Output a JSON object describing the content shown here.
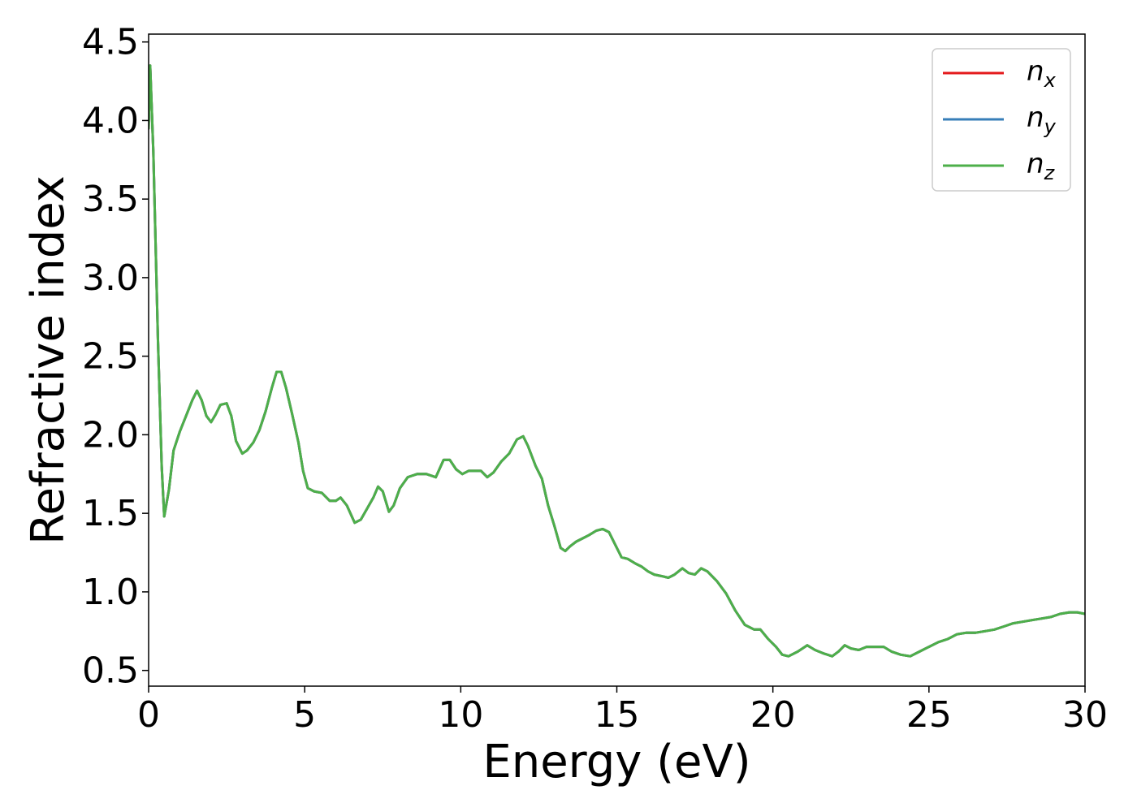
{
  "chart_data": {
    "type": "line",
    "title": "",
    "xlabel": "Energy (eV)",
    "ylabel": "Refractive index",
    "xlim": [
      0,
      30
    ],
    "ylim": [
      0.4,
      4.55
    ],
    "xticks": [
      0,
      5,
      10,
      15,
      20,
      25,
      30
    ],
    "xtick_labels": [
      "0",
      "5",
      "10",
      "15",
      "20",
      "25",
      "30"
    ],
    "yticks": [
      0.5,
      1.0,
      1.5,
      2.0,
      2.5,
      3.0,
      3.5,
      4.0,
      4.5
    ],
    "ytick_labels": [
      "0.5",
      "1.0",
      "1.5",
      "2.0",
      "2.5",
      "3.0",
      "3.5",
      "4.0",
      "4.5"
    ],
    "grid": false,
    "legend": {
      "position": "top-right",
      "entries": [
        {
          "base": "n",
          "sub": "x",
          "color": "#e41a1c"
        },
        {
          "base": "n",
          "sub": "y",
          "color": "#377eb8"
        },
        {
          "base": "n",
          "sub": "z",
          "color": "#4daf4a"
        }
      ]
    },
    "x": [
      0.0,
      0.05,
      0.15,
      0.3,
      0.42,
      0.5,
      0.65,
      0.8,
      1.0,
      1.2,
      1.4,
      1.55,
      1.7,
      1.85,
      2.0,
      2.15,
      2.3,
      2.5,
      2.65,
      2.8,
      3.0,
      3.15,
      3.35,
      3.55,
      3.75,
      3.95,
      4.1,
      4.25,
      4.4,
      4.6,
      4.8,
      4.95,
      5.1,
      5.3,
      5.55,
      5.8,
      6.0,
      6.15,
      6.35,
      6.6,
      6.8,
      7.0,
      7.2,
      7.35,
      7.5,
      7.7,
      7.85,
      8.05,
      8.3,
      8.6,
      8.9,
      9.2,
      9.45,
      9.65,
      9.85,
      10.05,
      10.25,
      10.45,
      10.65,
      10.85,
      11.05,
      11.3,
      11.55,
      11.8,
      12.0,
      12.15,
      12.4,
      12.6,
      12.8,
      13.0,
      13.2,
      13.35,
      13.5,
      13.7,
      13.9,
      14.1,
      14.35,
      14.55,
      14.75,
      14.95,
      15.15,
      15.35,
      15.6,
      15.8,
      16.0,
      16.2,
      16.45,
      16.65,
      16.85,
      17.1,
      17.3,
      17.5,
      17.7,
      17.9,
      18.2,
      18.5,
      18.8,
      19.1,
      19.4,
      19.6,
      19.85,
      20.1,
      20.3,
      20.5,
      20.8,
      21.1,
      21.35,
      21.6,
      21.9,
      22.1,
      22.3,
      22.5,
      22.75,
      23.0,
      23.3,
      23.55,
      23.8,
      24.1,
      24.4,
      24.7,
      25.0,
      25.3,
      25.6,
      25.9,
      26.2,
      26.5,
      26.8,
      27.1,
      27.4,
      27.7,
      28.0,
      28.3,
      28.6,
      28.9,
      29.2,
      29.5,
      29.75,
      30.0
    ],
    "series": [
      {
        "name": "n_x",
        "color": "#e41a1c",
        "y": [
          3.95,
          4.35,
          3.8,
          2.6,
          1.8,
          1.48,
          1.65,
          1.9,
          2.02,
          2.12,
          2.22,
          2.28,
          2.22,
          2.12,
          2.08,
          2.13,
          2.19,
          2.2,
          2.12,
          1.96,
          1.88,
          1.9,
          1.95,
          2.03,
          2.15,
          2.3,
          2.4,
          2.4,
          2.3,
          2.13,
          1.95,
          1.77,
          1.66,
          1.64,
          1.63,
          1.58,
          1.58,
          1.6,
          1.55,
          1.44,
          1.46,
          1.53,
          1.6,
          1.67,
          1.64,
          1.51,
          1.55,
          1.66,
          1.73,
          1.75,
          1.75,
          1.73,
          1.84,
          1.84,
          1.78,
          1.75,
          1.77,
          1.77,
          1.77,
          1.73,
          1.76,
          1.83,
          1.88,
          1.97,
          1.99,
          1.93,
          1.8,
          1.72,
          1.55,
          1.42,
          1.28,
          1.26,
          1.29,
          1.32,
          1.34,
          1.36,
          1.39,
          1.4,
          1.38,
          1.3,
          1.22,
          1.21,
          1.18,
          1.16,
          1.13,
          1.11,
          1.1,
          1.09,
          1.11,
          1.15,
          1.12,
          1.11,
          1.15,
          1.13,
          1.07,
          0.99,
          0.88,
          0.79,
          0.76,
          0.76,
          0.7,
          0.65,
          0.6,
          0.59,
          0.62,
          0.66,
          0.63,
          0.61,
          0.59,
          0.62,
          0.66,
          0.64,
          0.63,
          0.65,
          0.65,
          0.65,
          0.62,
          0.6,
          0.59,
          0.62,
          0.65,
          0.68,
          0.7,
          0.73,
          0.74,
          0.74,
          0.75,
          0.76,
          0.78,
          0.8,
          0.81,
          0.82,
          0.83,
          0.84,
          0.86,
          0.87,
          0.87,
          0.86
        ]
      },
      {
        "name": "n_y",
        "color": "#377eb8",
        "y": [
          3.95,
          4.35,
          3.8,
          2.6,
          1.8,
          1.48,
          1.65,
          1.9,
          2.02,
          2.12,
          2.22,
          2.28,
          2.22,
          2.12,
          2.08,
          2.13,
          2.19,
          2.2,
          2.12,
          1.96,
          1.88,
          1.9,
          1.95,
          2.03,
          2.15,
          2.3,
          2.4,
          2.4,
          2.3,
          2.13,
          1.95,
          1.77,
          1.66,
          1.64,
          1.63,
          1.58,
          1.58,
          1.6,
          1.55,
          1.44,
          1.46,
          1.53,
          1.6,
          1.67,
          1.64,
          1.51,
          1.55,
          1.66,
          1.73,
          1.75,
          1.75,
          1.73,
          1.84,
          1.84,
          1.78,
          1.75,
          1.77,
          1.77,
          1.77,
          1.73,
          1.76,
          1.83,
          1.88,
          1.97,
          1.99,
          1.93,
          1.8,
          1.72,
          1.55,
          1.42,
          1.28,
          1.26,
          1.29,
          1.32,
          1.34,
          1.36,
          1.39,
          1.4,
          1.38,
          1.3,
          1.22,
          1.21,
          1.18,
          1.16,
          1.13,
          1.11,
          1.1,
          1.09,
          1.11,
          1.15,
          1.12,
          1.11,
          1.15,
          1.13,
          1.07,
          0.99,
          0.88,
          0.79,
          0.76,
          0.76,
          0.7,
          0.65,
          0.6,
          0.59,
          0.62,
          0.66,
          0.63,
          0.61,
          0.59,
          0.62,
          0.66,
          0.64,
          0.63,
          0.65,
          0.65,
          0.65,
          0.62,
          0.6,
          0.59,
          0.62,
          0.65,
          0.68,
          0.7,
          0.73,
          0.74,
          0.74,
          0.75,
          0.76,
          0.78,
          0.8,
          0.81,
          0.82,
          0.83,
          0.84,
          0.86,
          0.87,
          0.87,
          0.86
        ]
      },
      {
        "name": "n_z",
        "color": "#4daf4a",
        "y": [
          3.95,
          4.35,
          3.8,
          2.6,
          1.8,
          1.48,
          1.65,
          1.9,
          2.02,
          2.12,
          2.22,
          2.28,
          2.22,
          2.12,
          2.08,
          2.13,
          2.19,
          2.2,
          2.12,
          1.96,
          1.88,
          1.9,
          1.95,
          2.03,
          2.15,
          2.3,
          2.4,
          2.4,
          2.3,
          2.13,
          1.95,
          1.77,
          1.66,
          1.64,
          1.63,
          1.58,
          1.58,
          1.6,
          1.55,
          1.44,
          1.46,
          1.53,
          1.6,
          1.67,
          1.64,
          1.51,
          1.55,
          1.66,
          1.73,
          1.75,
          1.75,
          1.73,
          1.84,
          1.84,
          1.78,
          1.75,
          1.77,
          1.77,
          1.77,
          1.73,
          1.76,
          1.83,
          1.88,
          1.97,
          1.99,
          1.93,
          1.8,
          1.72,
          1.55,
          1.42,
          1.28,
          1.26,
          1.29,
          1.32,
          1.34,
          1.36,
          1.39,
          1.4,
          1.38,
          1.3,
          1.22,
          1.21,
          1.18,
          1.16,
          1.13,
          1.11,
          1.1,
          1.09,
          1.11,
          1.15,
          1.12,
          1.11,
          1.15,
          1.13,
          1.07,
          0.99,
          0.88,
          0.79,
          0.76,
          0.76,
          0.7,
          0.65,
          0.6,
          0.59,
          0.62,
          0.66,
          0.63,
          0.61,
          0.59,
          0.62,
          0.66,
          0.64,
          0.63,
          0.65,
          0.65,
          0.65,
          0.62,
          0.6,
          0.59,
          0.62,
          0.65,
          0.68,
          0.7,
          0.73,
          0.74,
          0.74,
          0.75,
          0.76,
          0.78,
          0.8,
          0.81,
          0.82,
          0.83,
          0.84,
          0.86,
          0.87,
          0.87,
          0.86
        ]
      }
    ]
  }
}
